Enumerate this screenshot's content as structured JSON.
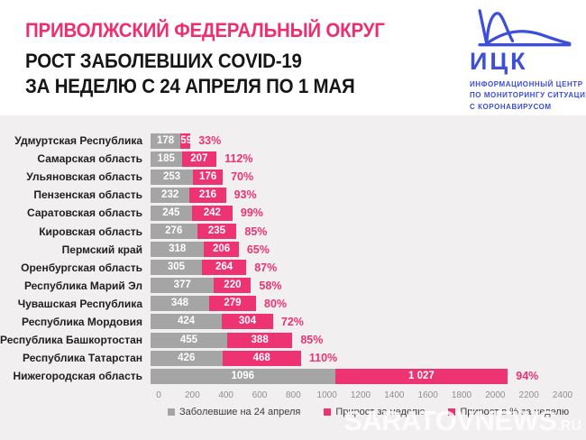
{
  "header": {
    "title_line1": "ПРИВОЛЖСКИЙ ФЕДЕРАЛЬНЫЙ ОКРУГ",
    "title_line2": "РОСТ ЗАБОЛЕВШИХ COVID-19",
    "title_line3": "ЗА НЕДЕЛЮ С 24 АПРЕЛЯ ПО 1 МАЯ"
  },
  "logo": {
    "acronym": "ИЦК",
    "line1": "ИНФОРМАЦИОННЫЙ ЦЕНТР",
    "line2": "ПО МОНИТОРИНГУ СИТУАЦИИ",
    "line3": "С КОРОНАВИРУСОМ"
  },
  "chart_data": {
    "type": "bar",
    "orientation": "horizontal",
    "stacked": true,
    "title": "Приволжский федеральный округ — рост заболевших COVID-19 за неделю с 24 апреля по 1 мая",
    "categories": [
      "Удмуртская Республика",
      "Самарская область",
      "Ульяновская область",
      "Пензенская область",
      "Саратовская область",
      "Кировская область",
      "Пермский край",
      "Оренбургская область",
      "Республика Марий Эл",
      "Чувашская Республика",
      "Республика Мордовия",
      "Республика Башкортостан",
      "Республика Татарстан",
      "Нижегородская область"
    ],
    "series": [
      {
        "name": "Заболевшие на 24 апреля",
        "color": "#A5A5A5",
        "values": [
          178,
          185,
          253,
          232,
          245,
          276,
          318,
          305,
          377,
          348,
          424,
          455,
          426,
          1096
        ],
        "labels": [
          "178",
          "185",
          "253",
          "232",
          "245",
          "276",
          "318",
          "305",
          "377",
          "348",
          "424",
          "455",
          "426",
          "1096"
        ]
      },
      {
        "name": "Прирост за неделю",
        "color": "#ED3372",
        "values": [
          59,
          207,
          176,
          216,
          242,
          235,
          206,
          264,
          220,
          279,
          304,
          388,
          468,
          1027
        ],
        "labels": [
          "59",
          "207",
          "176",
          "216",
          "242",
          "235",
          "206",
          "264",
          "220",
          "279",
          "304",
          "388",
          "468",
          "1 027"
        ]
      }
    ],
    "percent_growth": [
      "33%",
      "112%",
      "70%",
      "93%",
      "99%",
      "85%",
      "65%",
      "87%",
      "58%",
      "80%",
      "72%",
      "85%",
      "110%",
      "94%"
    ],
    "x_ticks": [
      "0",
      "200",
      "400",
      "600",
      "800",
      "1000",
      "1200",
      "1400",
      "1600",
      "1800",
      "2000",
      "2200",
      "2400"
    ],
    "xlim": [
      0,
      2400
    ],
    "grid": false,
    "legend_position": "bottom"
  },
  "legend": {
    "items": [
      {
        "label": "Заболевшие на 24 апреля",
        "color": "#A5A5A5"
      },
      {
        "label": "Прирост за неделю",
        "color": "#ED3372"
      },
      {
        "label": "Прирост в % за неделю",
        "color": "#ED3372"
      }
    ]
  },
  "watermark": {
    "text": "SARATOVNEWS",
    "suffix": ".RU"
  },
  "colors": {
    "accent_pink": "#ED3372",
    "title_pink": "#ED2F6E",
    "bar_grey": "#A5A5A5",
    "panel_bg": "#F1EFEF",
    "logo_blue": "#3D4ED8"
  }
}
